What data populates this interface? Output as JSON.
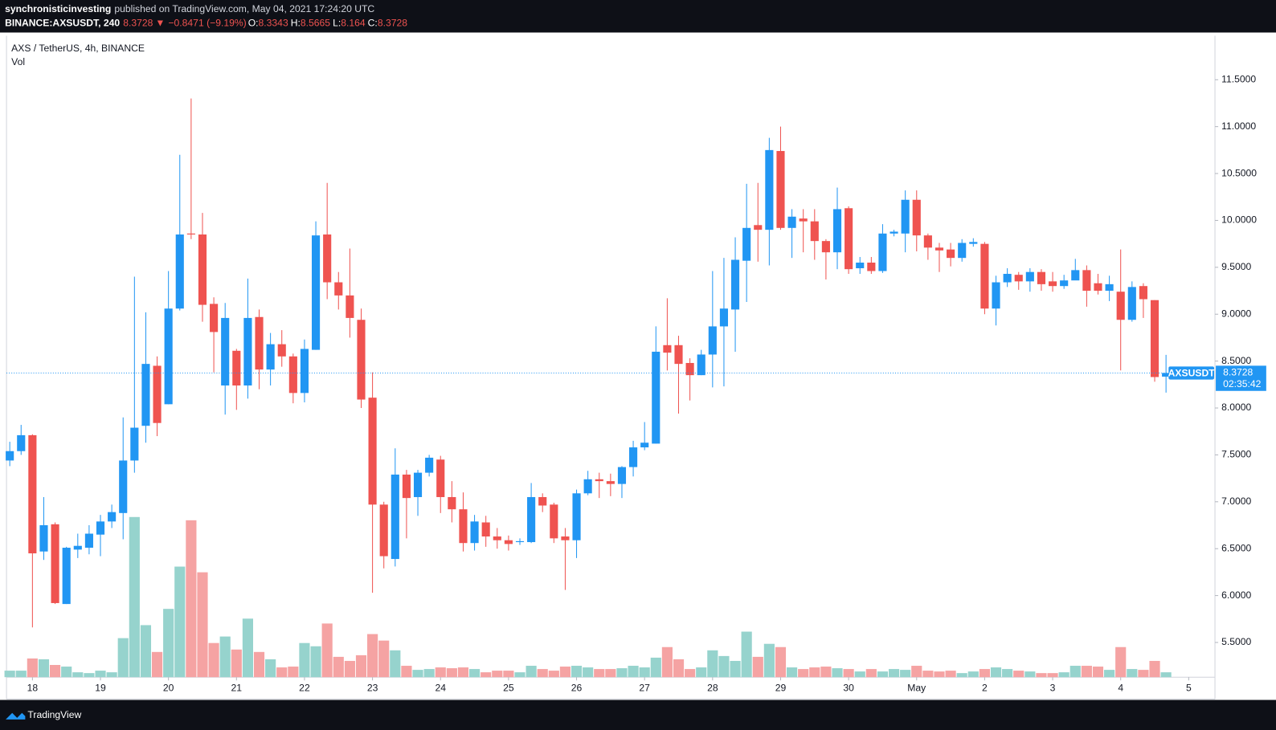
{
  "header": {
    "author": "synchronisticinvesting",
    "published": "published on TradingView.com, May 04, 2021 17:24:20 UTC",
    "symbol_line": "BINANCE:AXSUSDT, 240",
    "arrow": "▼",
    "change": "−0.8471 (−9.19%)",
    "o_label": "O:",
    "h_label": "H:",
    "l_label": "L:",
    "c_label": "C:"
  },
  "footer": {
    "brand": "TradingView"
  },
  "chart_data": {
    "type": "candlestick",
    "title": "AXS / TetherUS, 4h, BINANCE",
    "volume_label": "Vol",
    "symbol": "AXSUSDT",
    "countdown": "02:35:42",
    "up_color": "#2196f3",
    "down_color": "#ef5350",
    "vol_up_color": "#96d3cd",
    "vol_down_color": "#f5a3a3",
    "ylim": [
      5.13,
      11.96
    ],
    "yticks": [
      {
        "value": 5.5,
        "label": "5.5000"
      },
      {
        "value": 6,
        "label": "6.0000"
      },
      {
        "value": 6.5,
        "label": "6.5000"
      },
      {
        "value": 7,
        "label": "7.0000"
      },
      {
        "value": 7.5,
        "label": "7.5000"
      },
      {
        "value": 8,
        "label": "8.0000"
      },
      {
        "value": 8.5,
        "label": "8.5000"
      },
      {
        "value": 9,
        "label": "9.0000"
      },
      {
        "value": 9.5,
        "label": "9.5000"
      },
      {
        "value": 10,
        "label": "10.0000"
      },
      {
        "value": 10.5,
        "label": "10.5000"
      },
      {
        "value": 11,
        "label": "11.0000"
      },
      {
        "value": 11.5,
        "label": "11.5000"
      }
    ],
    "xticks": [
      "18",
      "19",
      "20",
      "21",
      "22",
      "23",
      "24",
      "25",
      "26",
      "27",
      "28",
      "29",
      "30",
      "May",
      "2",
      "3",
      "4",
      "5"
    ],
    "open": [
      7.44,
      7.54,
      7.71,
      6.47,
      6.76,
      5.91,
      6.49,
      6.51,
      6.65,
      6.79,
      6.88,
      7.44,
      7.81,
      8.45,
      8.04,
      9.06,
      9.86,
      9.85,
      9.11,
      8.24,
      8.61,
      8.24,
      8.97,
      8.41,
      8.68,
      8.55,
      8.16,
      8.62,
      9.85,
      9.34,
      9.2,
      8.94,
      8.11,
      6.97,
      6.39,
      7.29,
      7.05,
      7.31,
      7.45,
      7.05,
      6.92,
      6.56,
      6.78,
      6.63,
      6.59,
      6.57,
      6.57,
      7.05,
      6.97,
      6.63,
      6.59,
      7.09,
      7.24,
      7.22,
      7.19,
      7.37,
      7.58,
      7.62,
      8.67,
      8.67,
      8.48,
      8.35,
      8.57,
      8.87,
      9.05,
      9.57,
      9.95,
      9.9,
      10.74,
      9.92,
      10.02,
      9.99,
      9.78,
      9.66,
      10.13,
      9.49,
      9.55,
      9.46,
      9.86,
      9.86,
      10.22,
      9.84,
      9.71,
      9.69,
      9.6,
      9.75,
      9.75,
      9.06,
      9.34,
      9.42,
      9.35,
      9.45,
      9.35,
      9.3,
      9.36,
      9.47,
      9.33,
      9.25,
      9.24,
      8.94,
      9.3,
      9.15,
      8.3343
    ],
    "high": [
      7.64,
      7.82,
      7.72,
      7.05,
      6.78,
      6.52,
      6.66,
      6.75,
      6.86,
      6.97,
      7.9,
      9.4,
      9.02,
      8.55,
      9.46,
      10.7,
      11.3,
      10.08,
      9.18,
      9.12,
      8.63,
      9.38,
      9.05,
      8.8,
      8.83,
      8.58,
      8.73,
      9.99,
      10.4,
      9.45,
      9.7,
      9.06,
      8.38,
      7.0,
      7.57,
      7.34,
      7.34,
      7.5,
      7.49,
      7.22,
      7.1,
      6.86,
      6.85,
      6.72,
      6.64,
      6.61,
      7.2,
      7.09,
      6.99,
      6.72,
      7.13,
      7.33,
      7.31,
      7.3,
      7.38,
      7.65,
      7.85,
      8.87,
      9.17,
      8.77,
      8.53,
      8.62,
      9.46,
      9.6,
      9.82,
      10.39,
      10.4,
      10.88,
      11.0,
      10.12,
      10.12,
      10.12,
      9.8,
      10.35,
      10.15,
      9.61,
      9.61,
      9.96,
      9.9,
      10.32,
      10.32,
      9.86,
      9.76,
      9.76,
      9.8,
      9.81,
      9.77,
      9.41,
      9.49,
      9.45,
      9.49,
      9.48,
      9.45,
      9.42,
      9.59,
      9.52,
      9.43,
      9.41,
      9.69,
      9.35,
      9.33,
      9.15,
      8.5665
    ],
    "low": [
      7.38,
      7.5,
      5.66,
      6.38,
      5.91,
      5.91,
      6.4,
      6.44,
      6.42,
      6.72,
      6.6,
      7.31,
      7.63,
      7.7,
      8.04,
      9.04,
      9.8,
      8.92,
      8.38,
      7.93,
      7.98,
      8.1,
      8.2,
      8.24,
      8.44,
      8.05,
      8.06,
      8.62,
      9.16,
      9.05,
      8.75,
      8.0,
      6.03,
      6.29,
      6.31,
      6.61,
      6.85,
      7.27,
      6.88,
      6.78,
      6.47,
      6.48,
      6.52,
      6.5,
      6.48,
      6.54,
      6.56,
      6.89,
      6.56,
      6.06,
      6.4,
      7.07,
      7.04,
      7.06,
      7.04,
      7.27,
      7.55,
      7.62,
      8.4,
      7.94,
      8.08,
      8.35,
      8.22,
      8.23,
      8.6,
      9.13,
      9.56,
      9.52,
      9.9,
      9.6,
      9.66,
      9.58,
      9.37,
      9.48,
      9.43,
      9.43,
      9.43,
      9.44,
      9.83,
      9.66,
      9.67,
      9.58,
      9.45,
      9.51,
      9.56,
      9.72,
      9.0,
      8.88,
      9.29,
      9.26,
      9.24,
      9.25,
      9.24,
      9.27,
      9.38,
      9.08,
      9.21,
      9.14,
      8.4,
      8.92,
      8.96,
      8.28,
      8.164
    ],
    "close": [
      7.54,
      7.71,
      6.45,
      6.75,
      5.92,
      6.51,
      6.53,
      6.66,
      6.79,
      6.89,
      7.44,
      7.79,
      8.47,
      7.84,
      9.06,
      9.85,
      9.85,
      9.1,
      8.81,
      8.96,
      8.24,
      8.96,
      8.41,
      8.68,
      8.55,
      8.16,
      8.63,
      9.84,
      9.34,
      9.2,
      8.96,
      8.09,
      6.97,
      6.42,
      7.29,
      7.04,
      7.31,
      7.47,
      7.05,
      6.92,
      6.56,
      6.79,
      6.63,
      6.59,
      6.55,
      6.58,
      7.05,
      6.96,
      6.61,
      6.59,
      7.09,
      7.24,
      7.22,
      7.19,
      7.37,
      7.58,
      7.63,
      8.6,
      8.59,
      8.47,
      8.35,
      8.57,
      8.87,
      9.06,
      9.58,
      9.92,
      9.9,
      10.75,
      9.92,
      10.04,
      9.99,
      9.78,
      9.66,
      10.12,
      9.48,
      9.55,
      9.46,
      9.86,
      9.88,
      10.22,
      9.84,
      9.71,
      9.68,
      9.6,
      9.76,
      9.77,
      9.06,
      9.34,
      9.43,
      9.35,
      9.45,
      9.32,
      9.3,
      9.36,
      9.47,
      9.25,
      9.25,
      9.32,
      8.94,
      9.29,
      9.16,
      8.33,
      8.3728
    ],
    "volume": [
      8,
      8,
      23,
      22,
      15,
      13,
      6,
      5,
      8,
      6,
      48,
      197,
      64,
      31,
      84,
      136,
      193,
      129,
      42,
      50,
      34,
      72,
      31,
      22,
      12,
      13,
      42,
      38,
      66,
      25,
      20,
      27,
      53,
      45,
      33,
      14,
      9,
      10,
      12,
      11,
      12,
      10,
      6,
      8,
      8,
      6,
      14,
      10,
      8,
      13,
      14,
      12,
      10,
      10,
      11,
      14,
      12,
      24,
      37,
      22,
      10,
      12,
      33,
      26,
      20,
      56,
      25,
      41,
      37,
      12,
      10,
      12,
      13,
      11,
      10,
      7,
      10,
      7,
      10,
      9,
      14,
      8,
      7,
      8,
      5,
      7,
      10,
      12,
      10,
      8,
      7,
      5,
      5,
      6,
      14,
      14,
      13,
      9,
      37,
      10,
      9,
      20,
      6
    ]
  }
}
